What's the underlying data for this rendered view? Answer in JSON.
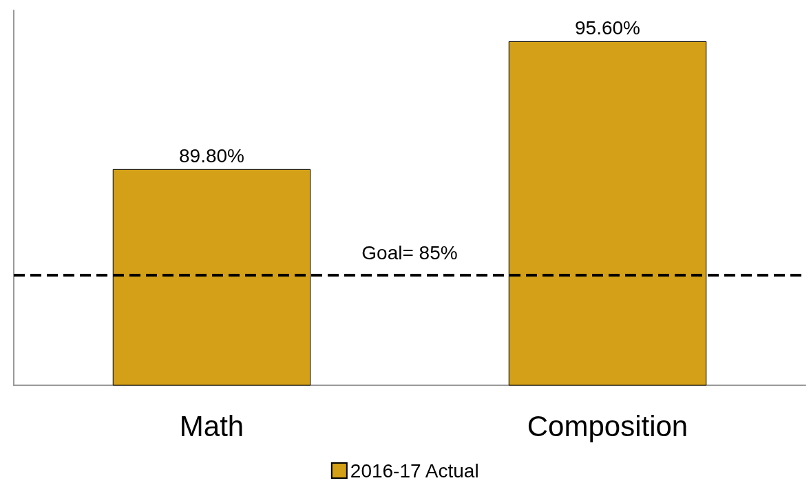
{
  "chart_data": {
    "type": "bar",
    "categories": [
      "Math",
      "Composition"
    ],
    "series": [
      {
        "name": "2016-17 Actual",
        "color": "#d4a017",
        "values": [
          89.8,
          95.6
        ],
        "value_labels": [
          "89.80%",
          "95.60%"
        ]
      }
    ],
    "ylim": [
      80,
      97
    ],
    "tick_labels": "x",
    "grid": false,
    "legend": "bottom",
    "ref_lines": [
      {
        "axis": "y",
        "value": 85,
        "label": "Goal= 85%",
        "color": "#000000",
        "line_style": "dashed"
      }
    ]
  }
}
